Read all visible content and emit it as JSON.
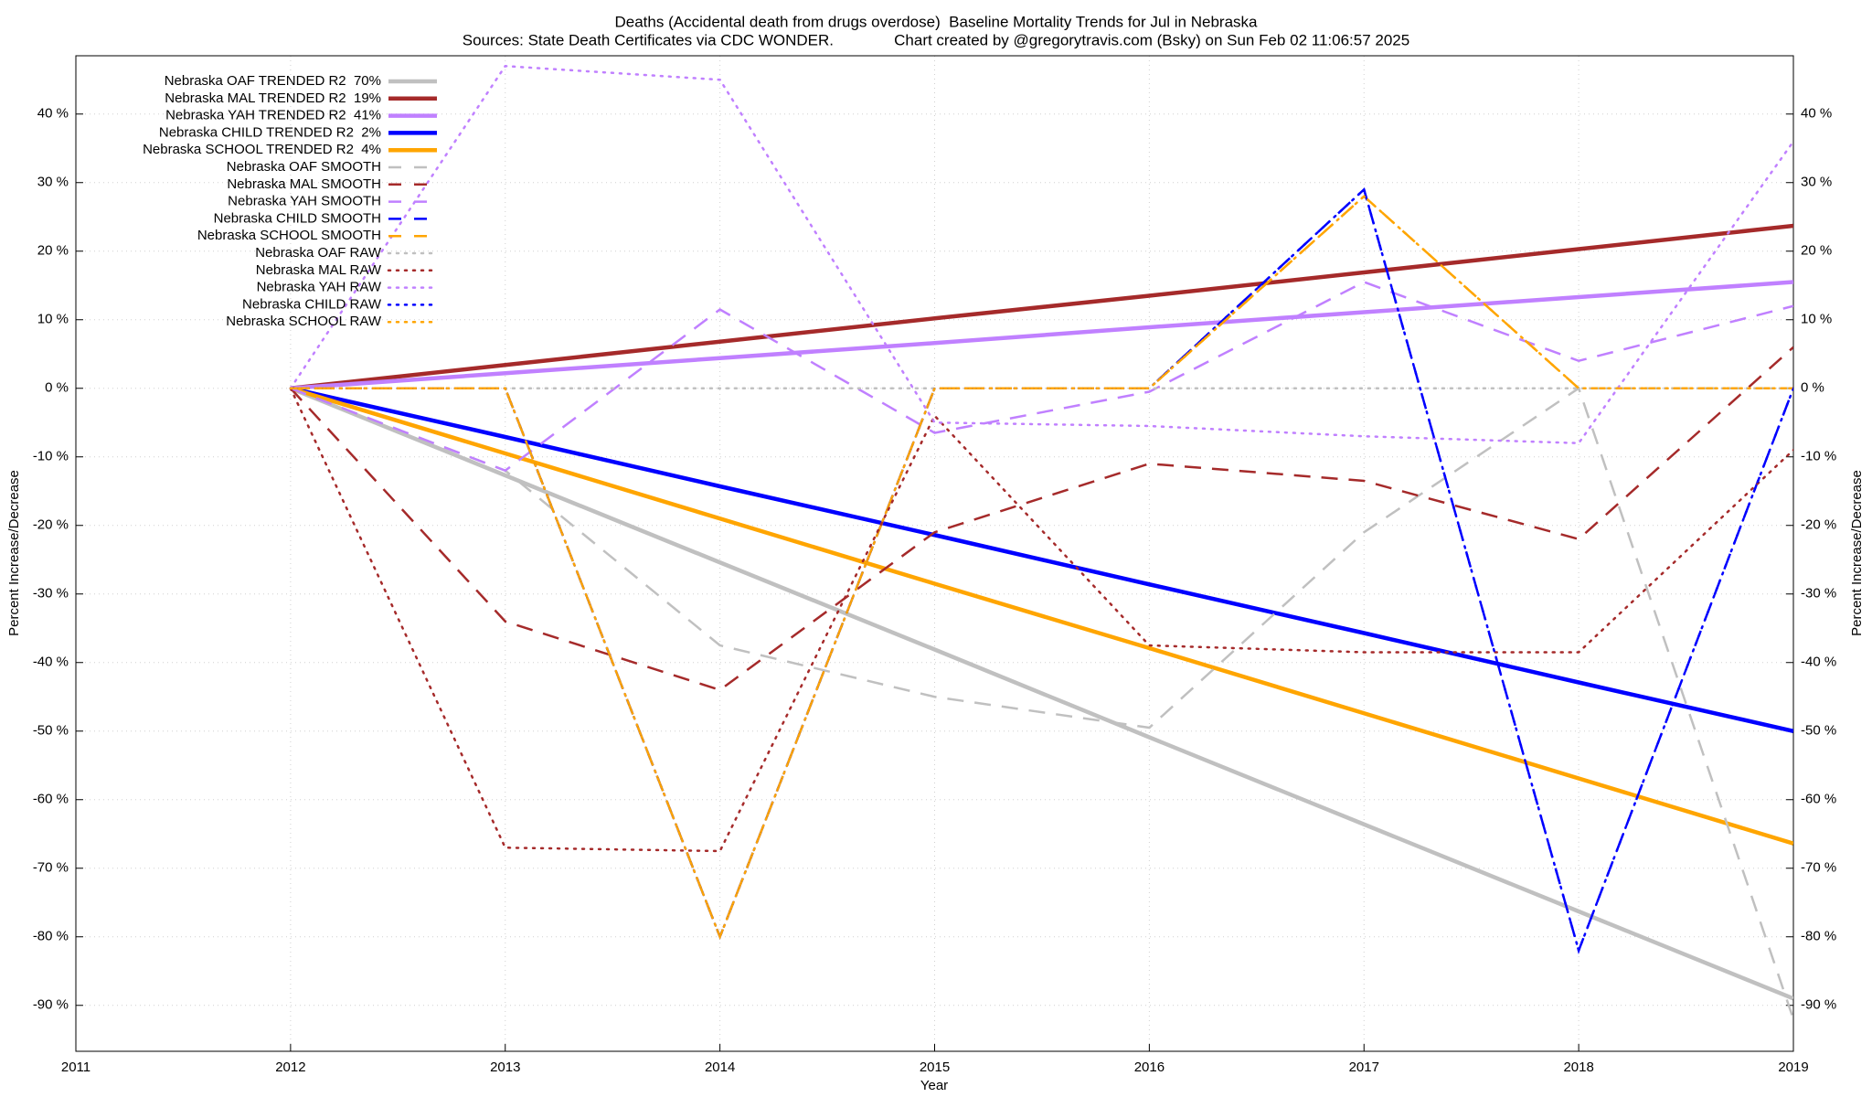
{
  "chart_data": {
    "type": "line",
    "title": "Deaths (Accidental death from drugs overdose)  Baseline Mortality Trends for Jul in Nebraska",
    "subtitle": "Sources: State Death Certificates via CDC WONDER.              Chart created by @gregorytravis.com (Bsky) on Sun Feb 02 11:06:57 2025",
    "xlabel": "Year",
    "ylabel": "Percent Increase/Decrease",
    "y2label": "Percent Increase/Decrease",
    "x": [
      2012,
      2013,
      2014,
      2015,
      2016,
      2017,
      2018,
      2019
    ],
    "xlim": [
      2011,
      2019
    ],
    "xticks": [
      2011,
      2012,
      2013,
      2014,
      2015,
      2016,
      2017,
      2018,
      2019
    ],
    "ylim": [
      -96.7,
      48.5
    ],
    "yticks": [
      {
        "value": -90,
        "label": "-90 %"
      },
      {
        "value": -80,
        "label": "-80 %"
      },
      {
        "value": -70,
        "label": "-70 %"
      },
      {
        "value": -60,
        "label": "-60 %"
      },
      {
        "value": -50,
        "label": "-50 %"
      },
      {
        "value": -40,
        "label": "-40 %"
      },
      {
        "value": -30,
        "label": "-30 %"
      },
      {
        "value": -20,
        "label": "-20 %"
      },
      {
        "value": -10,
        "label": "-10 %"
      },
      {
        "value": 0,
        "label": "0 %"
      },
      {
        "value": 10,
        "label": "10 %"
      },
      {
        "value": 20,
        "label": "20 %"
      },
      {
        "value": 30,
        "label": "30 %"
      },
      {
        "value": 40,
        "label": "40 %"
      }
    ],
    "y2lim": [
      -96.7,
      48.5
    ],
    "y2ticks": [
      {
        "value": -90,
        "label": "-90 %"
      },
      {
        "value": -80,
        "label": "-80 %"
      },
      {
        "value": -70,
        "label": "-70 %"
      },
      {
        "value": -60,
        "label": "-60 %"
      },
      {
        "value": -50,
        "label": "-50 %"
      },
      {
        "value": -40,
        "label": "-40 %"
      },
      {
        "value": -30,
        "label": "-30 %"
      },
      {
        "value": -20,
        "label": "-20 %"
      },
      {
        "value": -10,
        "label": "-10 %"
      },
      {
        "value": 0,
        "label": "0 %"
      },
      {
        "value": 10,
        "label": "10 %"
      },
      {
        "value": 20,
        "label": "20 %"
      },
      {
        "value": 30,
        "label": "30 %"
      },
      {
        "value": 40,
        "label": "40 %"
      }
    ],
    "grid": true,
    "legend": "top-left",
    "series": [
      {
        "name": "Nebraska OAF TRENDED R2  70%",
        "color": "#c0c0c0",
        "style": "solid",
        "values": [
          0,
          -12.7,
          -25.4,
          -38.1,
          -50.9,
          -63.6,
          -76.3,
          -89
        ]
      },
      {
        "name": "Nebraska MAL TRENDED R2  19%",
        "color": "#a52a2a",
        "style": "solid",
        "values": [
          0,
          3.4,
          6.8,
          10.2,
          13.5,
          16.9,
          20.3,
          23.7
        ]
      },
      {
        "name": "Nebraska YAH TRENDED R2  41%",
        "color": "#c080ff",
        "style": "solid",
        "values": [
          0,
          2.2,
          4.4,
          6.6,
          8.9,
          11.1,
          13.3,
          15.5
        ]
      },
      {
        "name": "Nebraska CHILD TRENDED R2  2%",
        "color": "#0000ff",
        "style": "solid",
        "values": [
          0,
          -7.1,
          -14.3,
          -21.4,
          -28.6,
          -35.7,
          -42.9,
          -50
        ]
      },
      {
        "name": "Nebraska SCHOOL TRENDED R2  4%",
        "color": "#ffa500",
        "style": "solid",
        "values": [
          0,
          -9.5,
          -19,
          -28.5,
          -37.9,
          -47.4,
          -56.9,
          -66.4
        ]
      },
      {
        "name": "Nebraska OAF SMOOTH",
        "color": "#c0c0c0",
        "style": "dashed",
        "values": [
          0,
          -12,
          -37.5,
          -45,
          -49.5,
          -21,
          0,
          -92
        ]
      },
      {
        "name": "Nebraska MAL SMOOTH",
        "color": "#a52a2a",
        "style": "dashed",
        "values": [
          0,
          -34,
          -44,
          -21,
          -11,
          -13.5,
          -22,
          6
        ]
      },
      {
        "name": "Nebraska YAH SMOOTH",
        "color": "#c080ff",
        "style": "dashed",
        "values": [
          0,
          -12,
          11.5,
          -6.5,
          -0.5,
          15.5,
          4,
          12
        ]
      },
      {
        "name": "Nebraska CHILD SMOOTH",
        "color": "#0000ff",
        "style": "dashed",
        "values": [
          0,
          0,
          -80,
          0,
          0,
          29,
          -82,
          0
        ]
      },
      {
        "name": "Nebraska SCHOOL SMOOTH",
        "color": "#ffa500",
        "style": "dashed",
        "values": [
          0,
          0,
          -80,
          0,
          0,
          28,
          0,
          0
        ]
      },
      {
        "name": "Nebraska OAF RAW",
        "color": "#c0c0c0",
        "style": "dotted",
        "values": [
          0,
          0,
          0,
          0,
          0,
          0,
          0,
          0
        ]
      },
      {
        "name": "Nebraska MAL RAW",
        "color": "#a52a2a",
        "style": "dotted",
        "values": [
          0,
          -67,
          -67.5,
          -4,
          -37.5,
          -38.5,
          -38.5,
          -9
        ]
      },
      {
        "name": "Nebraska YAH RAW",
        "color": "#c080ff",
        "style": "dotted",
        "values": [
          0,
          47,
          45,
          -5,
          -5.5,
          -7,
          -8,
          36
        ]
      },
      {
        "name": "Nebraska CHILD RAW",
        "color": "#0000ff",
        "style": "dotted",
        "values": [
          0,
          0,
          -80,
          0,
          0,
          29,
          -82,
          0
        ]
      },
      {
        "name": "Nebraska SCHOOL RAW",
        "color": "#ffa500",
        "style": "dotted",
        "values": [
          0,
          0,
          -80,
          0,
          0,
          28,
          0,
          0
        ]
      }
    ]
  }
}
